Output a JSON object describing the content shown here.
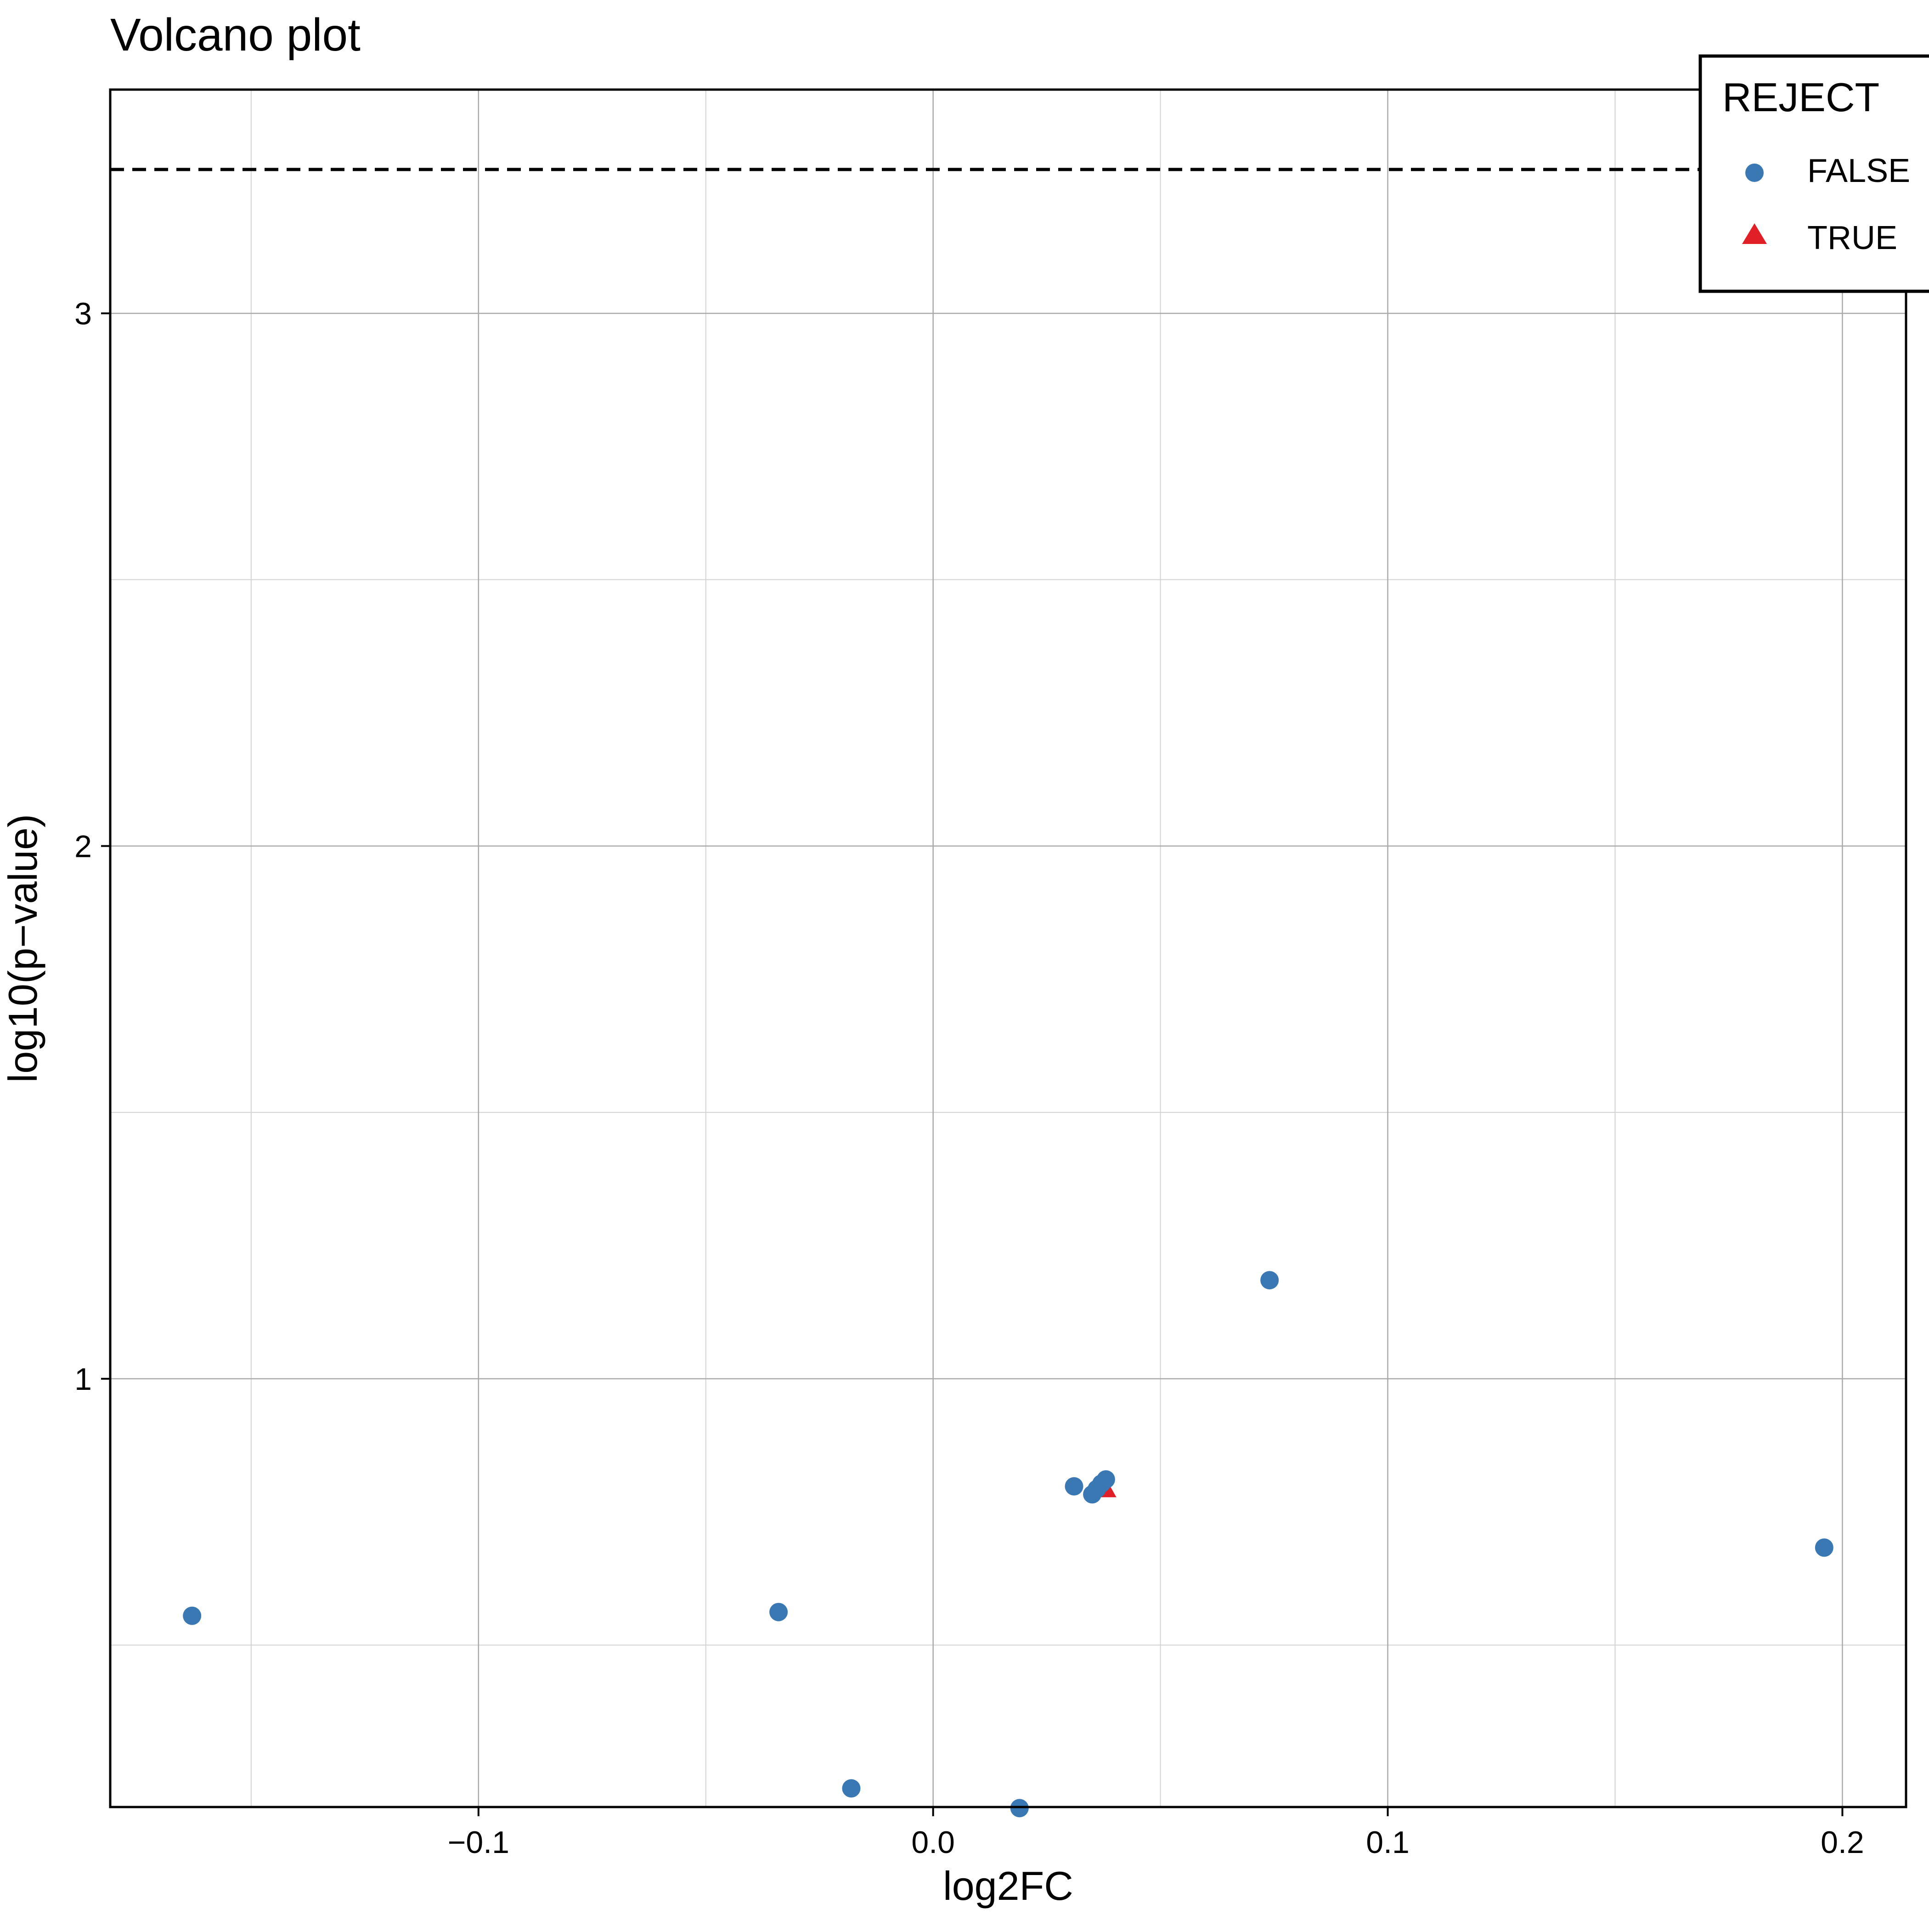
{
  "chart_data": {
    "type": "scatter",
    "title": "Volcano plot",
    "xlabel": "log2FC",
    "ylabel": "log10(p−value)",
    "xlim": [
      -0.181,
      0.214
    ],
    "ylim": [
      0.196,
      3.42
    ],
    "x_ticks": [
      -0.1,
      0.0,
      0.1,
      0.2
    ],
    "x_tick_labels": [
      "−0.1",
      "0.0",
      "0.1",
      "0.2"
    ],
    "y_ticks": [
      1,
      2,
      3
    ],
    "y_tick_labels": [
      "1",
      "2",
      "3"
    ],
    "minor_x_grid": [
      -0.15,
      -0.05,
      0.05,
      0.15
    ],
    "minor_y_grid": [
      0.5,
      1.5,
      2.5
    ],
    "threshold_line": {
      "y": 3.27,
      "style": "dashed",
      "color": "#000000"
    },
    "grid": true,
    "legend": {
      "title": "REJECT",
      "placement": "top-right",
      "entries": [
        {
          "label": "FALSE",
          "shape": "circle",
          "color": "#3a78b4"
        },
        {
          "label": "TRUE",
          "shape": "triangle",
          "color": "#e01f26"
        }
      ]
    },
    "series": [
      {
        "name": "FALSE",
        "shape": "circle",
        "color": "#3a78b4",
        "x": [
          -0.163,
          -0.034,
          -0.018,
          0.019,
          0.031,
          0.035,
          0.036,
          0.037,
          0.038,
          0.074,
          0.196
        ],
        "y": [
          0.555,
          0.562,
          0.231,
          0.194,
          0.798,
          0.783,
          0.793,
          0.803,
          0.811,
          1.185,
          0.683
        ]
      },
      {
        "name": "TRUE",
        "shape": "triangle",
        "color": "#e01f26",
        "x": [
          0.038
        ],
        "y": [
          0.792
        ]
      }
    ]
  }
}
